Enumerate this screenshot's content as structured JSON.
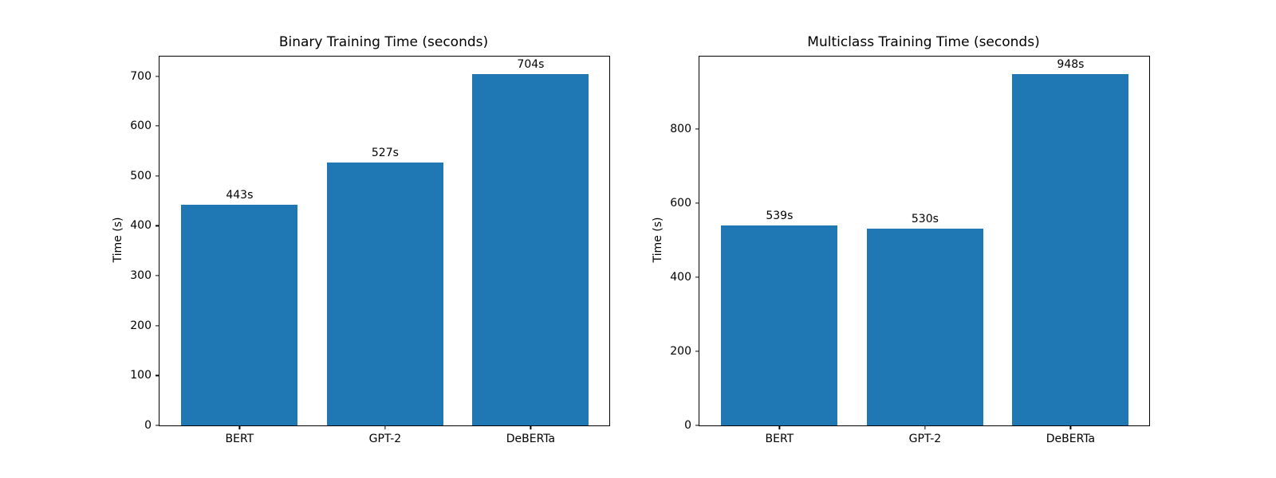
{
  "figure": {
    "background": "#ffffff",
    "text_color": "#000000",
    "bar_color": "#1f77b4"
  },
  "chart_data": [
    {
      "type": "bar",
      "title": "Binary Training Time (seconds)",
      "xlabel": "",
      "ylabel": "Time (s)",
      "categories": [
        "BERT",
        "GPT-2",
        "DeBERTa"
      ],
      "values": [
        443,
        527,
        704
      ],
      "bar_labels": [
        "443s",
        "527s",
        "704s"
      ],
      "yticks": [
        0,
        100,
        200,
        300,
        400,
        500,
        600,
        700
      ],
      "ylim": [
        0,
        739.2
      ],
      "bar_color": "#1f77b4",
      "grid": false,
      "legend": null
    },
    {
      "type": "bar",
      "title": "Multiclass Training Time (seconds)",
      "xlabel": "",
      "ylabel": "Time (s)",
      "categories": [
        "BERT",
        "GPT-2",
        "DeBERTa"
      ],
      "values": [
        539,
        530,
        948
      ],
      "bar_labels": [
        "539s",
        "530s",
        "948s"
      ],
      "yticks": [
        0,
        200,
        400,
        600,
        800
      ],
      "ylim": [
        0,
        995.4
      ],
      "bar_color": "#1f77b4",
      "grid": false,
      "legend": null
    }
  ]
}
